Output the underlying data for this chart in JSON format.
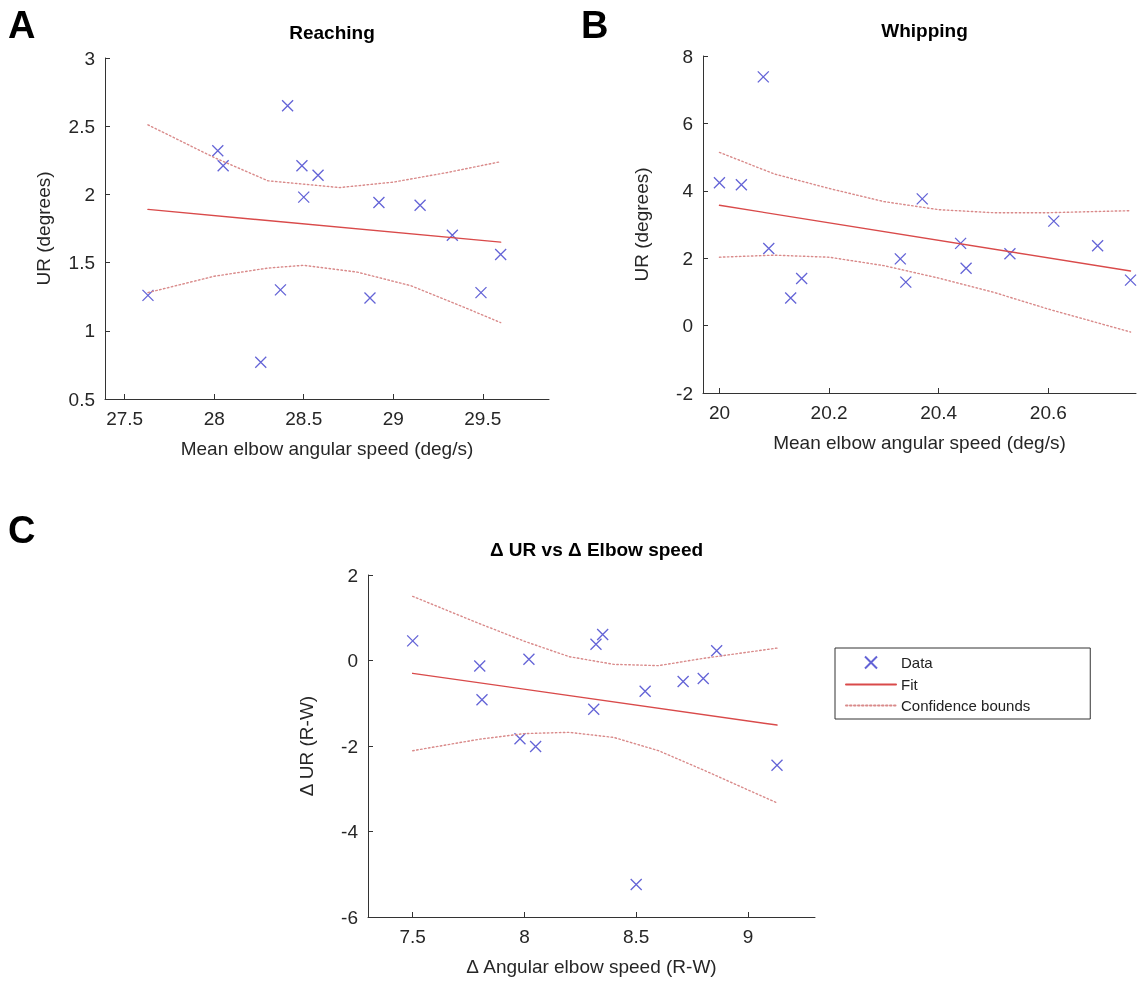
{
  "chart_data": [
    {
      "type": "scatter",
      "title": "Reaching",
      "xlabel": "Mean elbow angular speed (deg/s)",
      "ylabel": "UR (degrees)",
      "annotations": [
        "A"
      ],
      "xlim": [
        27.39,
        29.87
      ],
      "xticks": [
        27.5,
        28,
        28.5,
        29,
        29.5
      ],
      "ylim": [
        0.5,
        3
      ],
      "yticks": [
        0.5,
        1,
        1.5,
        2,
        2.5,
        3
      ],
      "grid": false,
      "legend": false,
      "series": [
        {
          "type": "scatter",
          "color": "#3c3ccc",
          "marker": "cross",
          "x": [
            27.63,
            28.02,
            28.05,
            28.41,
            28.49,
            28.5,
            28.58,
            28.37,
            28.26,
            28.92,
            28.87,
            29.15,
            29.33,
            29.6,
            29.49
          ],
          "values": [
            1.26,
            2.32,
            2.21,
            2.65,
            2.21,
            1.98,
            2.14,
            1.3,
            0.77,
            1.94,
            1.24,
            1.92,
            1.7,
            1.56,
            1.28
          ]
        },
        {
          "type": "line",
          "color": "#d94a4a",
          "line_style": "solid",
          "x": [
            27.63,
            29.6
          ],
          "values": [
            1.89,
            1.65
          ]
        },
        {
          "type": "line",
          "color": "#d98a8a",
          "line_style": "dotted",
          "x": [
            27.63,
            28.0,
            28.3,
            28.7,
            29.0,
            29.3,
            29.6
          ],
          "values": [
            2.51,
            2.27,
            2.1,
            2.05,
            2.09,
            2.16,
            2.24
          ]
        },
        {
          "type": "line",
          "color": "#d98a8a",
          "line_style": "dotted",
          "x": [
            27.63,
            28.0,
            28.3,
            28.5,
            28.8,
            29.1,
            29.4,
            29.6
          ],
          "values": [
            1.28,
            1.4,
            1.46,
            1.48,
            1.43,
            1.33,
            1.17,
            1.06
          ]
        }
      ]
    },
    {
      "type": "scatter",
      "title": "Whipping",
      "xlabel": "Mean elbow angular speed (deg/s)",
      "ylabel": "UR (degrees)",
      "annotations": [
        "B"
      ],
      "xlim": [
        19.97,
        20.76
      ],
      "xticks": [
        20,
        20.2,
        20.4,
        20.6
      ],
      "ylim": [
        -2,
        8
      ],
      "yticks": [
        -2,
        0,
        2,
        4,
        6,
        8
      ],
      "grid": false,
      "legend": false,
      "series": [
        {
          "type": "scatter",
          "color": "#3c3ccc",
          "marker": "cross",
          "x": [
            20.0,
            20.04,
            20.08,
            20.09,
            20.13,
            20.15,
            20.33,
            20.34,
            20.37,
            20.44,
            20.45,
            20.53,
            20.61,
            20.69,
            20.75
          ],
          "values": [
            4.24,
            4.18,
            7.38,
            2.29,
            0.82,
            1.4,
            1.98,
            1.29,
            3.76,
            2.44,
            1.7,
            2.13,
            3.1,
            2.37,
            1.35
          ]
        },
        {
          "type": "line",
          "color": "#d94a4a",
          "line_style": "solid",
          "x": [
            20.0,
            20.75
          ],
          "values": [
            3.57,
            1.62
          ]
        },
        {
          "type": "line",
          "color": "#d98a8a",
          "line_style": "dotted",
          "x": [
            20.0,
            20.1,
            20.2,
            20.3,
            20.4,
            20.5,
            20.6,
            20.75
          ],
          "values": [
            5.14,
            4.5,
            4.07,
            3.68,
            3.44,
            3.35,
            3.35,
            3.41
          ]
        },
        {
          "type": "line",
          "color": "#d98a8a",
          "line_style": "dotted",
          "x": [
            20.0,
            20.1,
            20.2,
            20.3,
            20.4,
            20.5,
            20.6,
            20.75
          ],
          "values": [
            2.03,
            2.09,
            2.03,
            1.78,
            1.41,
            0.99,
            0.49,
            -0.19
          ]
        }
      ]
    },
    {
      "type": "scatter",
      "title": "Δ UR vs Δ Elbow speed",
      "xlabel": "Δ Angular elbow speed (R-W)",
      "ylabel": "Δ UR (R-W)",
      "annotations": [
        "C"
      ],
      "xlim": [
        7.3,
        9.3
      ],
      "xticks": [
        7.5,
        8,
        8.5,
        9
      ],
      "ylim": [
        -6,
        2
      ],
      "yticks": [
        -6,
        -4,
        -2,
        0,
        2
      ],
      "grid": false,
      "legend": "right",
      "series": [
        {
          "type": "scatter",
          "name": "Data",
          "color": "#3c3ccc",
          "marker": "cross",
          "x": [
            7.5,
            7.8,
            7.81,
            8.02,
            7.98,
            8.05,
            8.32,
            8.35,
            8.31,
            8.5,
            8.54,
            8.71,
            8.8,
            8.86,
            9.13
          ],
          "values": [
            0.46,
            -0.13,
            -0.92,
            0.03,
            -1.83,
            -2.01,
            0.38,
            0.61,
            -1.14,
            -5.24,
            -0.72,
            -0.49,
            -0.42,
            0.23,
            -2.45
          ]
        },
        {
          "type": "line",
          "name": "Fit",
          "color": "#d94a4a",
          "line_style": "solid",
          "x": [
            7.5,
            9.13
          ],
          "values": [
            -0.3,
            -1.51
          ]
        },
        {
          "type": "line",
          "name": "Confidence bounds",
          "color": "#d98a8a",
          "line_style": "dotted",
          "x": [
            7.5,
            7.8,
            8.0,
            8.2,
            8.4,
            8.6,
            8.8,
            9.13
          ],
          "values": [
            1.5,
            0.86,
            0.45,
            0.09,
            -0.09,
            -0.12,
            0.05,
            0.29
          ]
        },
        {
          "type": "line",
          "color": "#d98a8a",
          "line_style": "dotted",
          "x": [
            7.5,
            7.8,
            8.0,
            8.2,
            8.4,
            8.6,
            8.8,
            9.13
          ],
          "values": [
            -2.11,
            -1.84,
            -1.71,
            -1.68,
            -1.8,
            -2.11,
            -2.56,
            -3.33
          ]
        }
      ]
    }
  ]
}
